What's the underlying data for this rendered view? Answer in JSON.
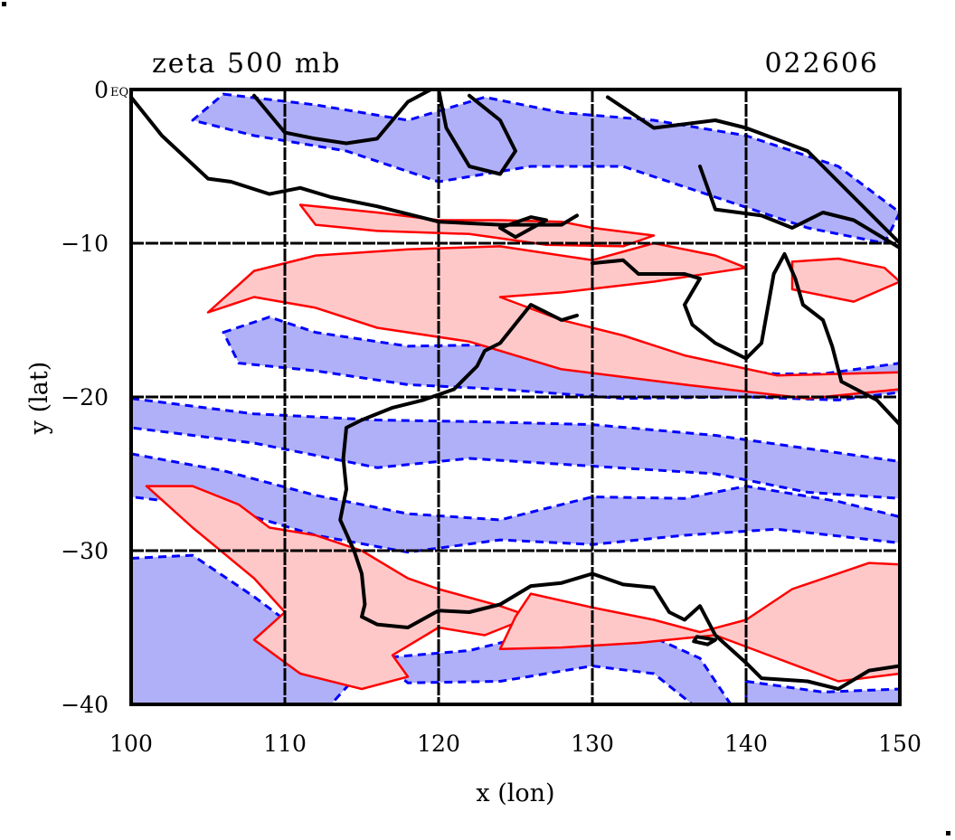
{
  "chart_data": {
    "type": "contour-map",
    "title": "zeta 500 mb",
    "date_label": "022606",
    "corner_label": "EQ",
    "xlabel": "x (lon)",
    "ylabel": "y (lat)",
    "xlim": [
      100,
      150
    ],
    "ylim": [
      -40,
      0
    ],
    "x_ticks": [
      100,
      110,
      120,
      130,
      140,
      150
    ],
    "y_ticks": [
      0,
      -10,
      -20,
      -30,
      -40
    ],
    "x_tick_labels": [
      "100",
      "110",
      "120",
      "130",
      "140",
      "150"
    ],
    "y_tick_labels": [
      "0",
      "−10",
      "−20",
      "−30",
      "−40"
    ],
    "grid": true,
    "grid_x": [
      110,
      120,
      130,
      140
    ],
    "grid_y": [
      -10,
      -20,
      -30
    ],
    "colors": {
      "positive_line": "#ff0000",
      "positive_fill": "#ffc8c8",
      "negative_line": "#0000ff",
      "negative_fill": "#b0b0f8",
      "coastline": "#000000",
      "grid": "#000000"
    },
    "legend": "none",
    "negative_regions": [
      {
        "name": "north-band",
        "points": [
          [
            106,
            -0.3
          ],
          [
            112,
            -1
          ],
          [
            118,
            -2
          ],
          [
            123,
            -0.5
          ],
          [
            128,
            -1.5
          ],
          [
            134,
            -2
          ],
          [
            140,
            -3
          ],
          [
            146,
            -5
          ],
          [
            150,
            -8
          ],
          [
            149,
            -10
          ],
          [
            144,
            -9
          ],
          [
            138,
            -7
          ],
          [
            132,
            -5
          ],
          [
            126,
            -5
          ],
          [
            120,
            -6
          ],
          [
            114,
            -4
          ],
          [
            108,
            -3
          ],
          [
            104,
            -2
          ]
        ]
      },
      {
        "name": "trough-15",
        "points": [
          [
            106,
            -15.8
          ],
          [
            109,
            -14.8
          ],
          [
            112,
            -15.8
          ],
          [
            118,
            -16.7
          ],
          [
            124,
            -16.6
          ],
          [
            130,
            -17.5
          ],
          [
            136,
            -18
          ],
          [
            142,
            -18.5
          ],
          [
            145,
            -18.5
          ],
          [
            150,
            -17.8
          ],
          [
            150,
            -19.7
          ],
          [
            146,
            -20.2
          ],
          [
            140,
            -20
          ],
          [
            132,
            -20.1
          ],
          [
            124,
            -19.5
          ],
          [
            118,
            -19.2
          ],
          [
            112,
            -18.3
          ],
          [
            107,
            -17.8
          ]
        ]
      },
      {
        "name": "band-20",
        "points": [
          [
            100,
            -20.1
          ],
          [
            108,
            -21.1
          ],
          [
            116,
            -21.5
          ],
          [
            122,
            -21.6
          ],
          [
            130,
            -21.8
          ],
          [
            138,
            -22.5
          ],
          [
            145,
            -23.5
          ],
          [
            150,
            -24.2
          ],
          [
            150,
            -26.6
          ],
          [
            144,
            -26.2
          ],
          [
            138,
            -25
          ],
          [
            130,
            -24.5
          ],
          [
            122,
            -24
          ],
          [
            116,
            -24.6
          ],
          [
            108,
            -23
          ],
          [
            100,
            -22
          ]
        ]
      },
      {
        "name": "band-west-25",
        "points": [
          [
            100,
            -23.7
          ],
          [
            106,
            -24.8
          ],
          [
            112,
            -26.4
          ],
          [
            118,
            -27.6
          ],
          [
            124,
            -28
          ],
          [
            130,
            -26.5
          ],
          [
            136,
            -26.6
          ],
          [
            140,
            -25.8
          ],
          [
            146,
            -26.8
          ],
          [
            150,
            -27.8
          ],
          [
            150,
            -29.5
          ],
          [
            142,
            -28.6
          ],
          [
            136,
            -29
          ],
          [
            130,
            -29.6
          ],
          [
            124,
            -29.3
          ],
          [
            118,
            -30.1
          ],
          [
            112,
            -29
          ],
          [
            106,
            -27.2
          ],
          [
            100,
            -26.5
          ]
        ]
      },
      {
        "name": "southwest",
        "points": [
          [
            100,
            -30.5
          ],
          [
            104,
            -30.3
          ],
          [
            108,
            -33
          ],
          [
            112,
            -36
          ],
          [
            115,
            -37.8
          ],
          [
            113,
            -40
          ],
          [
            100,
            -40
          ]
        ]
      },
      {
        "name": "south-central",
        "points": [
          [
            116,
            -37
          ],
          [
            122,
            -36.5
          ],
          [
            128,
            -35
          ],
          [
            133,
            -35.2
          ],
          [
            137,
            -37
          ],
          [
            139,
            -40
          ],
          [
            136.5,
            -40
          ],
          [
            134,
            -38
          ],
          [
            130,
            -37.5
          ],
          [
            124,
            -38.5
          ],
          [
            118,
            -38.6
          ]
        ]
      },
      {
        "name": "southeast",
        "points": [
          [
            140,
            -38.5
          ],
          [
            145,
            -39.2
          ],
          [
            150,
            -39
          ],
          [
            150,
            -40
          ],
          [
            140,
            -40
          ]
        ]
      }
    ],
    "positive_regions": [
      {
        "name": "java-sea",
        "points": [
          [
            111,
            -7.5
          ],
          [
            116,
            -8
          ],
          [
            120,
            -8.5
          ],
          [
            124,
            -8.5
          ],
          [
            128,
            -8.6
          ],
          [
            130,
            -9
          ],
          [
            134,
            -9.5
          ],
          [
            132,
            -10.2
          ],
          [
            127,
            -10.1
          ],
          [
            122,
            -9.4
          ],
          [
            116,
            -9.2
          ],
          [
            112,
            -8.8
          ]
        ]
      },
      {
        "name": "band-12",
        "points": [
          [
            105,
            -14.5
          ],
          [
            108,
            -11.8
          ],
          [
            112,
            -10.8
          ],
          [
            118,
            -10.4
          ],
          [
            124,
            -10.2
          ],
          [
            130,
            -11.1
          ],
          [
            134,
            -10
          ],
          [
            138,
            -10.8
          ],
          [
            140,
            -11.6
          ],
          [
            134,
            -12.5
          ],
          [
            128,
            -13.2
          ],
          [
            124,
            -13.5
          ],
          [
            128,
            -15
          ],
          [
            132,
            -16
          ],
          [
            136,
            -17.3
          ],
          [
            142,
            -18.6
          ],
          [
            150,
            -18.4
          ],
          [
            150,
            -19.5
          ],
          [
            144,
            -20.1
          ],
          [
            136,
            -19.2
          ],
          [
            128,
            -18.2
          ],
          [
            122,
            -16.4
          ],
          [
            116,
            -15.5
          ],
          [
            112,
            -14.2
          ],
          [
            108,
            -13.5
          ]
        ]
      },
      {
        "name": "coral-sea",
        "points": [
          [
            143,
            -11.2
          ],
          [
            146,
            -11
          ],
          [
            149,
            -11.6
          ],
          [
            150,
            -12.5
          ],
          [
            147,
            -13.8
          ],
          [
            143,
            -13
          ]
        ]
      },
      {
        "name": "west-swirl",
        "points": [
          [
            101,
            -25.8
          ],
          [
            104,
            -25.8
          ],
          [
            107,
            -27
          ],
          [
            109,
            -28.5
          ],
          [
            112,
            -29
          ],
          [
            115,
            -30
          ],
          [
            118,
            -31.8
          ],
          [
            120,
            -32.5
          ],
          [
            124,
            -33.6
          ],
          [
            126,
            -34.3
          ],
          [
            123,
            -35.5
          ],
          [
            120,
            -35
          ],
          [
            117,
            -36.8
          ],
          [
            118,
            -38.2
          ],
          [
            115,
            -39
          ],
          [
            111,
            -38
          ],
          [
            108,
            -35.8
          ],
          [
            110,
            -34
          ],
          [
            108,
            -31.8
          ],
          [
            104,
            -28.5
          ]
        ]
      },
      {
        "name": "south-band",
        "points": [
          [
            126,
            -32.8
          ],
          [
            130,
            -33.7
          ],
          [
            134,
            -34.5
          ],
          [
            137,
            -35.3
          ],
          [
            140,
            -34.5
          ],
          [
            143,
            -32.5
          ],
          [
            148,
            -30.8
          ],
          [
            150,
            -30.9
          ],
          [
            150,
            -38
          ],
          [
            146,
            -38.5
          ],
          [
            142,
            -37
          ],
          [
            138,
            -35.5
          ],
          [
            133,
            -36
          ],
          [
            128,
            -36.3
          ],
          [
            124,
            -36.4
          ],
          [
            125,
            -34.3
          ]
        ]
      }
    ],
    "coastline": [
      {
        "name": "sumatra-java",
        "points": [
          [
            100,
            -0.5
          ],
          [
            102,
            -3
          ],
          [
            105,
            -5.8
          ],
          [
            106.5,
            -6
          ],
          [
            109,
            -6.8
          ],
          [
            111,
            -6.4
          ],
          [
            113,
            -7
          ],
          [
            116,
            -7.6
          ],
          [
            120,
            -8.6
          ],
          [
            124,
            -8.8
          ],
          [
            128,
            -8.8
          ],
          [
            129,
            -8.2
          ]
        ]
      },
      {
        "name": "borneo",
        "points": [
          [
            108,
            -0.4
          ],
          [
            110,
            -2.8
          ],
          [
            112,
            -3.2
          ],
          [
            114,
            -3.5
          ],
          [
            116,
            -3.2
          ],
          [
            118,
            -0.8
          ],
          [
            119.5,
            0
          ]
        ]
      },
      {
        "name": "sulawesi",
        "points": [
          [
            120,
            0
          ],
          [
            120.5,
            -2.5
          ],
          [
            122,
            -5
          ],
          [
            124,
            -5.5
          ],
          [
            125,
            -4
          ],
          [
            124,
            -2
          ],
          [
            122,
            -0.4
          ]
        ]
      },
      {
        "name": "new-guinea",
        "points": [
          [
            131,
            -0.5
          ],
          [
            134,
            -2.5
          ],
          [
            138,
            -2
          ],
          [
            140,
            -2.5
          ],
          [
            144,
            -4
          ],
          [
            146,
            -6
          ],
          [
            148,
            -8
          ],
          [
            150,
            -10
          ]
        ]
      },
      {
        "name": "new-guinea-south",
        "points": [
          [
            137,
            -5
          ],
          [
            138,
            -7.8
          ],
          [
            141,
            -8.2
          ],
          [
            143,
            -9
          ],
          [
            145,
            -8
          ],
          [
            147,
            -8.5
          ],
          [
            150,
            -10.3
          ]
        ]
      },
      {
        "name": "australia",
        "points": [
          [
            130,
            -11.3
          ],
          [
            132,
            -11.1
          ],
          [
            133,
            -12
          ],
          [
            136,
            -12
          ],
          [
            137,
            -12.3
          ],
          [
            136,
            -14
          ],
          [
            136.5,
            -15.3
          ],
          [
            138,
            -16.5
          ],
          [
            140,
            -17.5
          ],
          [
            141,
            -16.5
          ],
          [
            141.8,
            -12
          ],
          [
            142.5,
            -10.7
          ],
          [
            143.2,
            -12.3
          ],
          [
            143.7,
            -14
          ],
          [
            145,
            -15
          ],
          [
            145.6,
            -16.7
          ],
          [
            146.2,
            -19
          ],
          [
            148.5,
            -20.2
          ],
          [
            150,
            -21.8
          ],
          [
            150,
            -22.5
          ]
        ]
      },
      {
        "name": "australia-west",
        "points": [
          [
            129,
            -14.7
          ],
          [
            128,
            -15
          ],
          [
            126,
            -14
          ],
          [
            124,
            -16.5
          ],
          [
            123,
            -17
          ],
          [
            122.5,
            -18
          ],
          [
            121,
            -19.5
          ],
          [
            119,
            -20.2
          ],
          [
            117,
            -20.7
          ],
          [
            115,
            -21.5
          ],
          [
            114,
            -22
          ],
          [
            113.8,
            -24
          ],
          [
            114,
            -26
          ],
          [
            113.6,
            -28
          ],
          [
            114.5,
            -30
          ],
          [
            115,
            -31.5
          ],
          [
            115.2,
            -33.5
          ],
          [
            115,
            -34.3
          ],
          [
            116,
            -34.8
          ],
          [
            118,
            -35
          ],
          [
            120,
            -33.9
          ],
          [
            122,
            -34
          ],
          [
            124,
            -33.5
          ],
          [
            126,
            -32.3
          ],
          [
            128,
            -32.1
          ],
          [
            130,
            -31.5
          ],
          [
            132,
            -32.2
          ],
          [
            134,
            -32.4
          ],
          [
            135,
            -34
          ],
          [
            136,
            -34.5
          ],
          [
            137,
            -33.6
          ],
          [
            138,
            -35.5
          ],
          [
            140,
            -37.3
          ],
          [
            141,
            -38.3
          ],
          [
            144,
            -38.5
          ],
          [
            146,
            -39
          ],
          [
            148,
            -37.8
          ],
          [
            150,
            -37.5
          ]
        ]
      }
    ],
    "islands": [
      {
        "name": "tasmania",
        "points": [
          [
            145,
            -40
          ]
        ]
      },
      {
        "name": "kangaroo-island",
        "points": [
          [
            136.8,
            -35.6
          ],
          [
            138,
            -35.8
          ],
          [
            137.5,
            -36.1
          ],
          [
            136.6,
            -35.9
          ]
        ]
      },
      {
        "name": "timor",
        "points": [
          [
            124,
            -9
          ],
          [
            126,
            -8.3
          ],
          [
            127,
            -8.5
          ],
          [
            125,
            -9.6
          ]
        ]
      }
    ]
  }
}
